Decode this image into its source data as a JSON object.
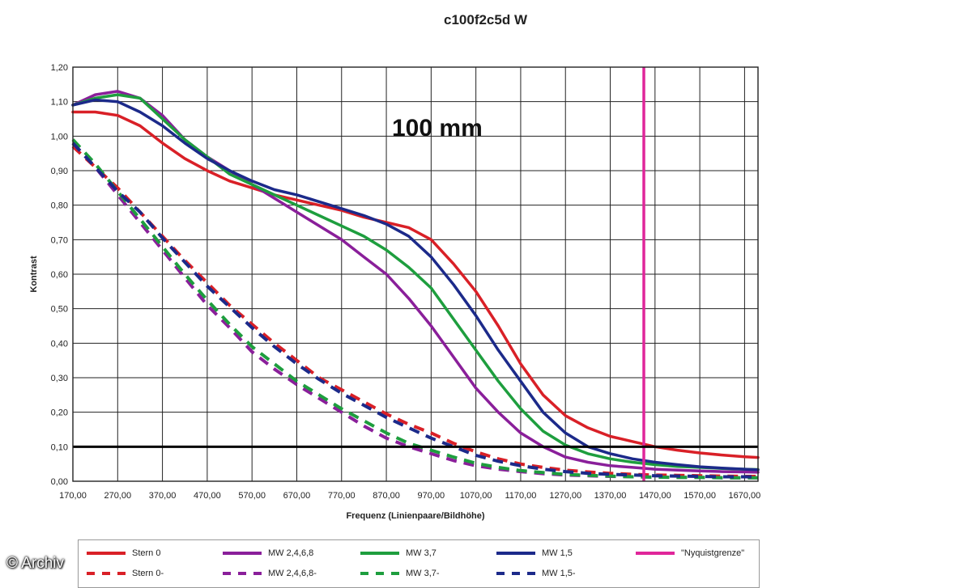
{
  "chart_data": {
    "type": "line",
    "title": "c100f2c5d W",
    "xlabel": "Frequenz (Linienpaare/Bildhöhe)",
    "ylabel": "Kontrast",
    "annotation": "100 mm",
    "xlim": [
      170,
      1700
    ],
    "ylim": [
      0,
      1.2
    ],
    "x_ticks": [
      "170,00",
      "270,00",
      "370,00",
      "470,00",
      "570,00",
      "670,00",
      "770,00",
      "870,00",
      "970,00",
      "1070,00",
      "1170,00",
      "1270,00",
      "1370,00",
      "1470,00",
      "1570,00",
      "1670,00"
    ],
    "y_ticks": [
      "0,00",
      "0,10",
      "0,20",
      "0,30",
      "0,40",
      "0,50",
      "0,60",
      "0,70",
      "0,80",
      "0,90",
      "1,00",
      "1,10",
      "1,20"
    ],
    "grid": true,
    "legend_position": "bottom",
    "threshold_line": 0.1,
    "x": [
      170,
      220,
      270,
      320,
      370,
      420,
      470,
      520,
      570,
      620,
      670,
      720,
      770,
      820,
      870,
      920,
      970,
      1020,
      1070,
      1120,
      1170,
      1220,
      1270,
      1320,
      1370,
      1420,
      1470,
      1520,
      1570,
      1620,
      1670,
      1700
    ],
    "series": [
      {
        "name": "Stern 0",
        "color": "#d92027",
        "style": "solid",
        "values": [
          1.07,
          1.07,
          1.06,
          1.03,
          0.98,
          0.935,
          0.9,
          0.87,
          0.85,
          0.83,
          0.815,
          0.8,
          0.785,
          0.765,
          0.75,
          0.735,
          0.7,
          0.63,
          0.55,
          0.45,
          0.34,
          0.25,
          0.19,
          0.155,
          0.13,
          0.115,
          0.1,
          0.09,
          0.082,
          0.076,
          0.071,
          0.069
        ]
      },
      {
        "name": "MW 2,4,6,8",
        "color": "#8a1f9a",
        "style": "solid",
        "values": [
          1.09,
          1.12,
          1.13,
          1.11,
          1.06,
          0.99,
          0.94,
          0.9,
          0.86,
          0.82,
          0.78,
          0.74,
          0.7,
          0.65,
          0.6,
          0.53,
          0.45,
          0.36,
          0.27,
          0.2,
          0.14,
          0.1,
          0.07,
          0.055,
          0.045,
          0.04,
          0.035,
          0.032,
          0.03,
          0.028,
          0.027,
          0.026
        ]
      },
      {
        "name": "MW 3,7",
        "color": "#1e9e3e",
        "style": "solid",
        "values": [
          1.09,
          1.11,
          1.12,
          1.11,
          1.05,
          0.99,
          0.94,
          0.89,
          0.86,
          0.83,
          0.8,
          0.77,
          0.74,
          0.71,
          0.67,
          0.62,
          0.56,
          0.47,
          0.38,
          0.29,
          0.21,
          0.145,
          0.105,
          0.08,
          0.065,
          0.055,
          0.048,
          0.043,
          0.04,
          0.037,
          0.035,
          0.034
        ]
      },
      {
        "name": "MW 1,5",
        "color": "#1c2a8a",
        "style": "solid",
        "values": [
          1.09,
          1.105,
          1.1,
          1.07,
          1.03,
          0.98,
          0.935,
          0.9,
          0.87,
          0.845,
          0.83,
          0.81,
          0.79,
          0.77,
          0.745,
          0.71,
          0.65,
          0.57,
          0.48,
          0.38,
          0.29,
          0.2,
          0.14,
          0.1,
          0.08,
          0.065,
          0.055,
          0.048,
          0.042,
          0.038,
          0.035,
          0.033
        ]
      },
      {
        "name": "Stern 0-",
        "color": "#d92027",
        "style": "dashed",
        "values": [
          0.97,
          0.91,
          0.85,
          0.78,
          0.71,
          0.64,
          0.575,
          0.51,
          0.455,
          0.4,
          0.35,
          0.3,
          0.265,
          0.23,
          0.195,
          0.165,
          0.14,
          0.11,
          0.085,
          0.065,
          0.05,
          0.04,
          0.032,
          0.027,
          0.023,
          0.02,
          0.018,
          0.017,
          0.016,
          0.015,
          0.014,
          0.014
        ]
      },
      {
        "name": "MW 2,4,6,8-",
        "color": "#8a1f9a",
        "style": "dashed",
        "values": [
          0.98,
          0.91,
          0.83,
          0.75,
          0.67,
          0.59,
          0.51,
          0.445,
          0.375,
          0.325,
          0.28,
          0.24,
          0.2,
          0.16,
          0.125,
          0.1,
          0.08,
          0.06,
          0.045,
          0.035,
          0.028,
          0.022,
          0.018,
          0.016,
          0.014,
          0.013,
          0.012,
          0.011,
          0.011,
          0.01,
          0.01,
          0.01
        ]
      },
      {
        "name": "MW 3,7-",
        "color": "#1e9e3e",
        "style": "dashed",
        "values": [
          0.99,
          0.92,
          0.84,
          0.76,
          0.68,
          0.6,
          0.525,
          0.455,
          0.39,
          0.34,
          0.29,
          0.25,
          0.21,
          0.175,
          0.14,
          0.11,
          0.09,
          0.07,
          0.052,
          0.04,
          0.031,
          0.025,
          0.02,
          0.017,
          0.015,
          0.013,
          0.012,
          0.011,
          0.011,
          0.01,
          0.01,
          0.01
        ]
      },
      {
        "name": "MW 1,5-",
        "color": "#1c2a8a",
        "style": "dashed",
        "values": [
          0.98,
          0.91,
          0.84,
          0.78,
          0.705,
          0.635,
          0.565,
          0.505,
          0.445,
          0.39,
          0.34,
          0.295,
          0.255,
          0.22,
          0.185,
          0.155,
          0.125,
          0.1,
          0.075,
          0.058,
          0.045,
          0.035,
          0.028,
          0.023,
          0.02,
          0.018,
          0.016,
          0.015,
          0.014,
          0.013,
          0.013,
          0.013
        ]
      },
      {
        "name": "\"Nyquistgrenze\"",
        "color": "#e0269a",
        "style": "vertical",
        "x_value": 1445
      }
    ]
  },
  "watermark": "© Archiv"
}
